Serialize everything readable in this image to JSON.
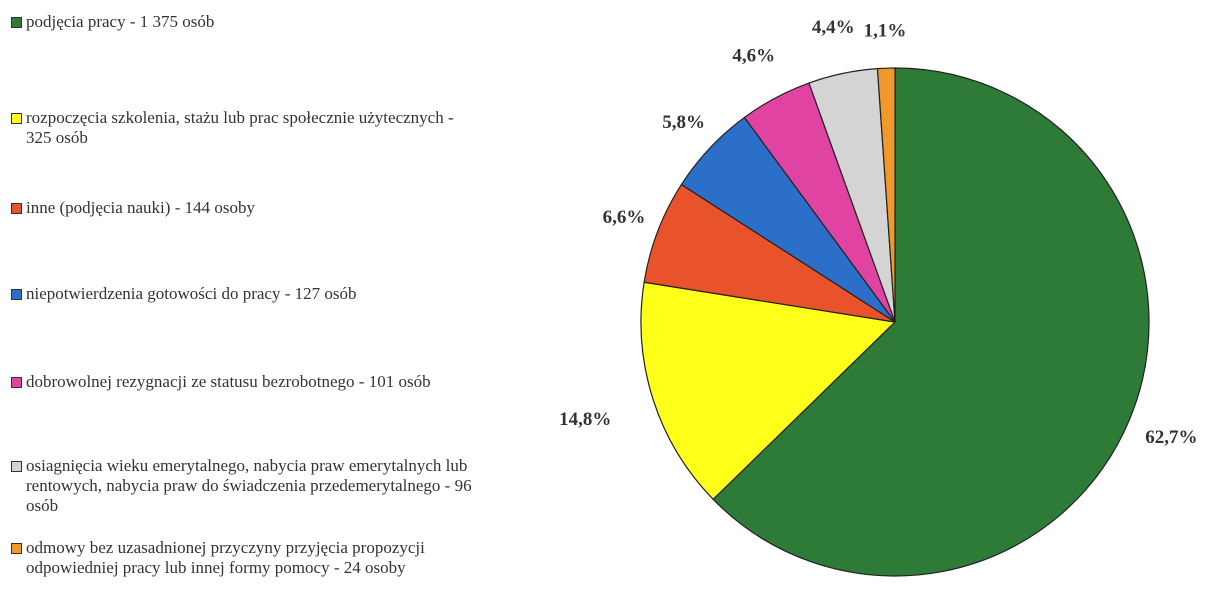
{
  "chart_data": {
    "type": "pie",
    "categories": [
      "podjęcia pracy - 1 375 osób",
      "rozpoczęcia szkolenia, stażu lub prac społecznie użytecznych - 325 osób",
      "inne (podjęcia nauki) - 144 osoby",
      "niepotwierdzenia gotowości do pracy - 127 osób",
      "dobrowolnej rezygnacji ze statusu bezrobotnego - 101 osób",
      "osiagnięcia wieku emerytalnego, nabycia praw emerytalnych lub rentowych, nabycia praw do świadczenia przedemerytalnego - 96 osób",
      "odmowy bez uzasadnionej przyczyny przyjęcia propozycji odpowiedniej pracy lub innej formy pomocy - 24 osoby"
    ],
    "values": [
      62.7,
      14.8,
      6.6,
      5.8,
      4.6,
      4.4,
      1.1
    ],
    "value_labels": [
      "62,7%",
      "14,8%",
      "6,6%",
      "5,8%",
      "4,6%",
      "4,4%",
      "1,1%"
    ],
    "colors": [
      "#2e7b38",
      "#ffff1a",
      "#e8532c",
      "#2b6fc8",
      "#e043a2",
      "#d4d4d4",
      "#f0982c"
    ]
  }
}
